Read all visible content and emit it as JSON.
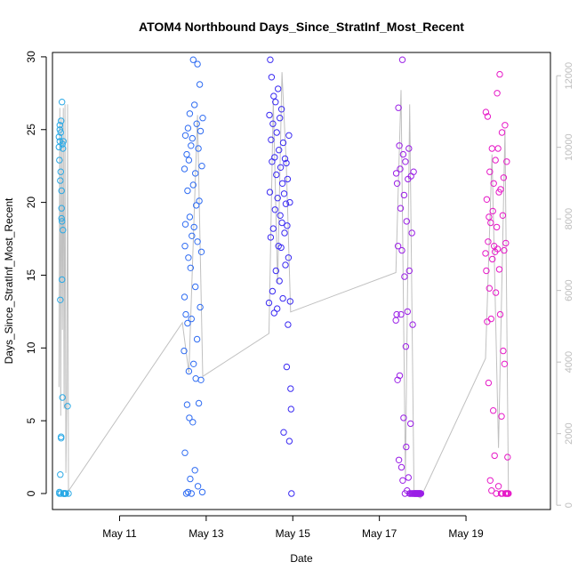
{
  "chart_data": {
    "type": "scatter",
    "title": "ATOM4 Northbound Days_Since_StratInf_Most_Recent",
    "xlabel": "Date",
    "ylabel": "Days_Since_StratInf_Most_Recent",
    "x_unit": "days in May",
    "xlim": [
      9.45,
      20.95
    ],
    "ylim": [
      -1.1,
      30.3
    ],
    "yticks": [
      0,
      5,
      10,
      15,
      20,
      25,
      30
    ],
    "xticks": [
      {
        "x": 11,
        "label": "May 11"
      },
      {
        "x": 13,
        "label": "May 13"
      },
      {
        "x": 15,
        "label": "May 15"
      },
      {
        "x": 17,
        "label": "May 17"
      },
      {
        "x": 19,
        "label": "May 19"
      }
    ],
    "y2lim": [
      -120,
      12650
    ],
    "y2ticks": [
      0,
      2000,
      4000,
      6000,
      8000,
      10000,
      12000
    ],
    "grid": false,
    "legend": "none",
    "series": [
      {
        "color": "#29a9e6",
        "x": [
          9.6,
          9.6,
          9.61,
          9.61,
          9.61,
          9.62,
          9.62,
          9.62,
          9.63,
          9.63,
          9.63,
          9.64,
          9.64,
          9.64,
          9.65,
          9.65,
          9.65,
          9.66,
          9.66,
          9.66,
          9.67,
          9.67,
          9.67,
          9.68,
          9.68,
          9.69,
          9.69,
          9.7,
          9.7,
          9.71,
          9.72,
          9.72,
          9.73,
          9.74,
          9.75,
          9.76,
          9.8,
          9.82
        ],
        "y": [
          24.5,
          23.8,
          22.9,
          0.1,
          0,
          24.2,
          25.0,
          25.3,
          21.5,
          13.3,
          1.3,
          22.1,
          24.8,
          0,
          3.9,
          3.8,
          25.6,
          20.8,
          19.6,
          18.9,
          18.7,
          14.7,
          26.9,
          24.0,
          6.6,
          23.7,
          18.1,
          24.2,
          0,
          0,
          0,
          0,
          0,
          0,
          0,
          0,
          6.0,
          0
        ]
      },
      {
        "color": "#2f6cf2",
        "x": [
          12.49,
          12.5,
          12.5,
          12.51,
          12.51,
          12.52,
          12.52,
          12.53,
          12.54,
          12.55,
          12.56,
          12.57,
          12.57,
          12.58,
          12.58,
          12.59,
          12.6,
          12.6,
          12.61,
          12.62,
          12.62,
          12.63,
          12.64,
          12.65,
          12.66,
          12.66,
          12.67,
          12.68,
          12.69,
          12.7,
          12.7,
          12.71,
          12.72,
          12.73,
          12.74,
          12.75,
          12.75,
          12.76,
          12.77,
          12.78,
          12.79,
          12.8,
          12.8,
          12.81,
          12.82,
          12.83,
          12.84,
          12.85,
          12.86,
          12.87,
          12.88,
          12.89,
          12.9,
          12.91,
          12.92
        ],
        "y": [
          9.8,
          13.5,
          22.3,
          2.8,
          17.0,
          18.5,
          24.6,
          12.3,
          0,
          23.3,
          6.1,
          20.8,
          11.7,
          0.1,
          25.1,
          16.2,
          8.4,
          22.9,
          5.2,
          19.0,
          26.1,
          1.0,
          15.5,
          23.9,
          0,
          12.0,
          17.7,
          24.4,
          4.9,
          21.2,
          29.8,
          8.9,
          18.3,
          26.7,
          1.6,
          14.2,
          22.0,
          7.9,
          19.8,
          25.4,
          10.6,
          29.5,
          17.3,
          0.5,
          23.7,
          6.2,
          20.1,
          28.1,
          12.8,
          24.9,
          7.8,
          16.6,
          22.5,
          0.1,
          25.8
        ]
      },
      {
        "color": "#3a2af2",
        "x": [
          14.45,
          14.46,
          14.47,
          14.48,
          14.49,
          14.5,
          14.51,
          14.52,
          14.53,
          14.54,
          14.55,
          14.56,
          14.57,
          14.58,
          14.59,
          14.6,
          14.61,
          14.62,
          14.63,
          14.64,
          14.65,
          14.66,
          14.67,
          14.68,
          14.69,
          14.7,
          14.71,
          14.72,
          14.73,
          14.74,
          14.75,
          14.76,
          14.77,
          14.78,
          14.79,
          14.8,
          14.81,
          14.82,
          14.83,
          14.84,
          14.85,
          14.86,
          14.87,
          14.88,
          14.89,
          14.9,
          14.91,
          14.92,
          14.93,
          14.94,
          14.95,
          14.96,
          14.97
        ],
        "y": [
          13.1,
          26.0,
          20.7,
          29.8,
          17.6,
          24.3,
          28.6,
          22.8,
          13.9,
          25.4,
          18.2,
          27.3,
          12.4,
          23.1,
          19.5,
          26.9,
          15.3,
          21.9,
          24.8,
          12.7,
          20.3,
          27.8,
          17.0,
          23.6,
          14.6,
          25.8,
          19.1,
          22.4,
          16.9,
          26.4,
          18.6,
          21.3,
          13.4,
          24.1,
          4.2,
          20.6,
          17.9,
          23.0,
          15.7,
          19.9,
          22.7,
          8.7,
          18.4,
          21.6,
          11.6,
          16.2,
          24.6,
          3.6,
          20.0,
          13.2,
          7.2,
          5.8,
          0
        ]
      },
      {
        "color": "#9a1fe6",
        "x": [
          17.38,
          17.39,
          17.4,
          17.41,
          17.42,
          17.43,
          17.44,
          17.45,
          17.46,
          17.47,
          17.48,
          17.49,
          17.5,
          17.51,
          17.52,
          17.53,
          17.54,
          17.55,
          17.56,
          17.57,
          17.58,
          17.59,
          17.6,
          17.61,
          17.62,
          17.63,
          17.64,
          17.65,
          17.66,
          17.67,
          17.68,
          17.69,
          17.7,
          17.71,
          17.72,
          17.73,
          17.74,
          17.75,
          17.76,
          17.77,
          17.78,
          17.79,
          17.8,
          17.81,
          17.82,
          17.83,
          17.84,
          17.85,
          17.86,
          17.87,
          17.88,
          17.89,
          17.9,
          17.91,
          17.92,
          17.93,
          17.94,
          17.95,
          17.96
        ],
        "y": [
          11.9,
          22.0,
          12.3,
          21.3,
          7.8,
          17.0,
          26.5,
          2.3,
          23.9,
          8.1,
          22.3,
          19.6,
          12.3,
          1.8,
          16.7,
          29.8,
          0.9,
          23.3,
          5.2,
          20.5,
          14.9,
          0,
          22.8,
          10.1,
          3.2,
          18.7,
          0.2,
          12.5,
          21.6,
          1.1,
          23.7,
          15.3,
          0,
          0,
          4.8,
          21.8,
          0,
          17.9,
          0,
          11.6,
          0,
          22.1,
          0,
          0,
          0,
          0,
          0,
          0,
          0,
          0,
          0,
          0,
          0,
          0,
          0,
          0,
          0,
          0,
          0
        ]
      },
      {
        "color": "#e619c7",
        "x": [
          19.45,
          19.46,
          19.47,
          19.48,
          19.49,
          19.5,
          19.51,
          19.52,
          19.53,
          19.54,
          19.55,
          19.56,
          19.57,
          19.58,
          19.59,
          19.6,
          19.61,
          19.62,
          19.63,
          19.64,
          19.65,
          19.66,
          19.67,
          19.68,
          19.69,
          19.7,
          19.71,
          19.72,
          19.73,
          19.74,
          19.75,
          19.76,
          19.77,
          19.78,
          19.79,
          19.8,
          19.81,
          19.82,
          19.83,
          19.84,
          19.85,
          19.86,
          19.87,
          19.88,
          19.89,
          19.9,
          19.91,
          19.92,
          19.93,
          19.94,
          19.95,
          19.96,
          19.97,
          19.98
        ],
        "y": [
          16.5,
          26.2,
          15.3,
          20.2,
          11.8,
          25.9,
          17.3,
          7.6,
          19.0,
          14.1,
          22.1,
          0.9,
          18.6,
          12.0,
          0.2,
          23.7,
          16.1,
          19.4,
          5.7,
          21.3,
          17.0,
          2.6,
          16.6,
          22.9,
          13.8,
          0,
          18.3,
          27.5,
          16.8,
          23.7,
          0.5,
          20.7,
          15.4,
          28.8,
          12.3,
          20.9,
          0,
          5.3,
          24.8,
          0,
          19.1,
          9.8,
          21.7,
          16.7,
          8.9,
          25.3,
          0,
          17.2,
          0,
          22.8,
          0,
          2.5,
          0,
          0
        ]
      }
    ],
    "secondary_line": {
      "color": "#c0c0c0",
      "x": [
        9.6,
        9.62,
        9.64,
        9.66,
        9.68,
        9.7,
        9.72,
        9.74,
        9.76,
        9.78,
        9.8,
        9.82,
        12.45,
        12.6,
        12.8,
        12.92,
        14.45,
        14.55,
        14.65,
        14.75,
        14.85,
        14.95,
        17.38,
        17.5,
        17.6,
        17.7,
        17.8,
        17.95,
        19.45,
        19.6,
        19.75,
        19.9,
        19.98
      ],
      "y": [
        3300,
        11100,
        2500,
        10800,
        4900,
        11100,
        2700,
        11200,
        900,
        3100,
        11200,
        400,
        5100,
        3700,
        10900,
        3600,
        4800,
        11300,
        6200,
        12100,
        9500,
        5400,
        6500,
        11600,
        800,
        11200,
        300,
        200,
        4100,
        9800,
        1600,
        10500,
        300
      ]
    }
  }
}
